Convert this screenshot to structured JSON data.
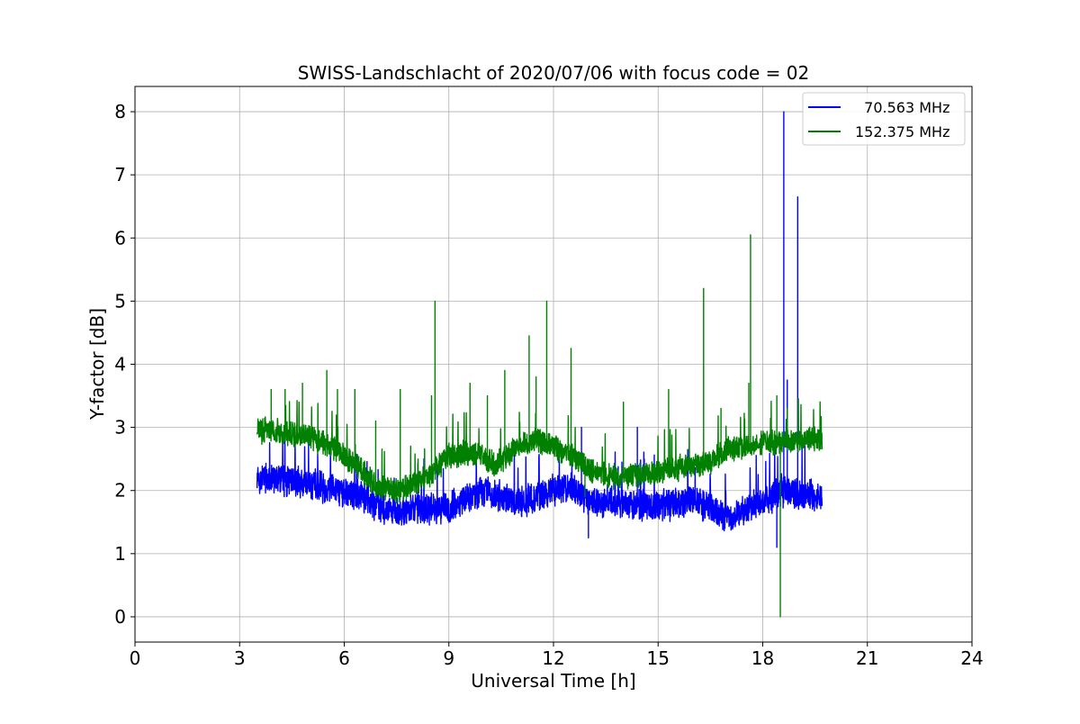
{
  "chart_data": {
    "type": "line",
    "title": "SWISS-Landschlacht of 2020/07/06 with focus code = 02",
    "xlabel": "Universal Time [h]",
    "ylabel": "Y-factor [dB]",
    "xlim": [
      0,
      24
    ],
    "ylim": [
      -0.4,
      8.4
    ],
    "xticks": [
      0,
      3,
      6,
      9,
      12,
      15,
      18,
      21,
      24
    ],
    "yticks": [
      0,
      1,
      2,
      3,
      4,
      5,
      6,
      7,
      8
    ],
    "grid": true,
    "legend_position": "top-right",
    "series": [
      {
        "name": "  70.563 MHz",
        "color": "#0000ff",
        "noise": 0.28,
        "x": [
          3.5,
          4.0,
          5.0,
          6.0,
          6.5,
          7.0,
          7.5,
          8.0,
          9.0,
          10.0,
          11.0,
          12.0,
          12.5,
          13.0,
          14.0,
          15.0,
          16.0,
          17.0,
          17.5,
          18.0,
          18.5,
          19.0,
          19.7
        ],
        "y": [
          2.2,
          2.2,
          2.1,
          2.0,
          1.9,
          1.75,
          1.65,
          1.7,
          1.75,
          2.0,
          1.8,
          2.0,
          2.05,
          1.85,
          1.8,
          1.75,
          1.85,
          1.55,
          1.7,
          1.8,
          2.0,
          1.95,
          1.9
        ],
        "spikes": [
          [
            12.8,
            3.0
          ],
          [
            13.0,
            1.25
          ],
          [
            14.4,
            3.0
          ],
          [
            14.6,
            2.5
          ],
          [
            18.4,
            1.1
          ],
          [
            18.6,
            8.0
          ],
          [
            18.7,
            3.75
          ],
          [
            19.0,
            6.65
          ]
        ]
      },
      {
        "name": "152.375 MHz",
        "color": "#008000",
        "noise": 0.22,
        "x": [
          3.5,
          4.0,
          5.0,
          5.5,
          6.0,
          6.5,
          7.0,
          7.5,
          8.0,
          8.5,
          9.0,
          9.5,
          10.0,
          10.3,
          11.0,
          11.5,
          12.0,
          12.5,
          13.0,
          13.5,
          14.0,
          15.0,
          16.0,
          16.5,
          17.0,
          17.5,
          18.0,
          19.0,
          19.7
        ],
        "y": [
          2.95,
          2.95,
          2.85,
          2.75,
          2.55,
          2.3,
          2.05,
          2.0,
          2.1,
          2.25,
          2.55,
          2.6,
          2.55,
          2.4,
          2.7,
          2.8,
          2.7,
          2.55,
          2.35,
          2.25,
          2.2,
          2.3,
          2.4,
          2.45,
          2.65,
          2.7,
          2.75,
          2.8,
          2.8
        ],
        "spikes": [
          [
            3.9,
            3.6
          ],
          [
            4.3,
            3.6
          ],
          [
            4.8,
            3.7
          ],
          [
            5.5,
            3.9
          ],
          [
            5.8,
            3.6
          ],
          [
            6.3,
            3.6
          ],
          [
            6.9,
            3.1
          ],
          [
            7.6,
            3.6
          ],
          [
            8.5,
            3.5
          ],
          [
            8.6,
            5.0
          ],
          [
            9.6,
            3.7
          ],
          [
            10.1,
            3.5
          ],
          [
            10.6,
            3.9
          ],
          [
            11.3,
            4.45
          ],
          [
            11.5,
            3.8
          ],
          [
            11.8,
            5.0
          ],
          [
            12.5,
            4.25
          ],
          [
            12.9,
            1.9
          ],
          [
            14.0,
            3.4
          ],
          [
            15.3,
            3.6
          ],
          [
            16.3,
            5.2
          ],
          [
            16.8,
            3.3
          ],
          [
            17.6,
            3.7
          ],
          [
            17.65,
            6.05
          ],
          [
            18.4,
            3.5
          ],
          [
            18.5,
            0.0
          ],
          [
            18.7,
            3.3
          ]
        ]
      }
    ]
  }
}
